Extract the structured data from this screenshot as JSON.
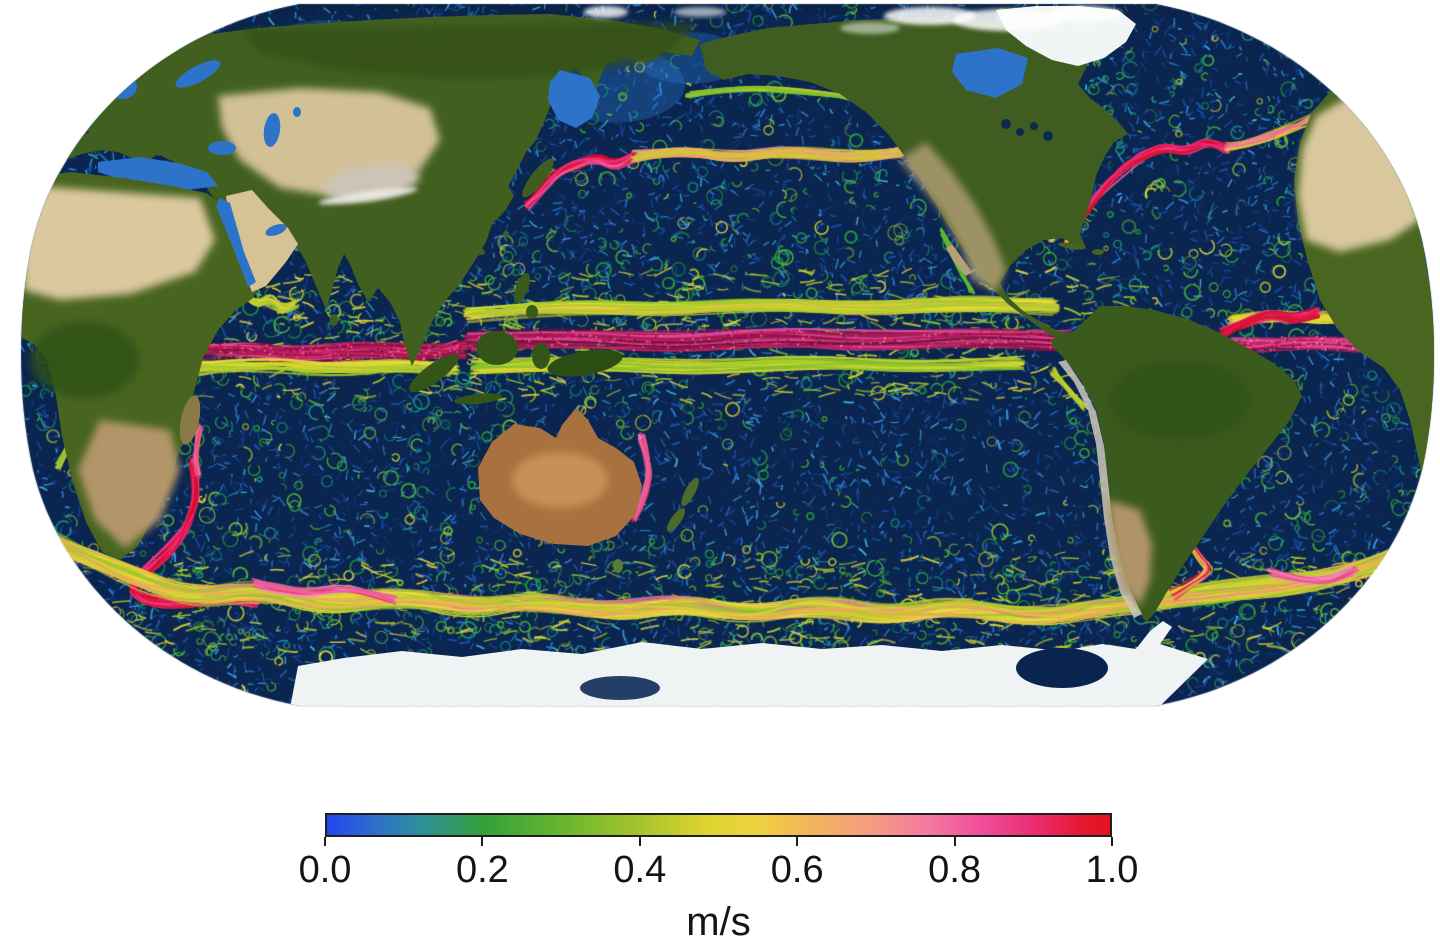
{
  "figure": {
    "kind": "global ocean surface current speed map",
    "projection": "robinson-like, pacific-centered",
    "background": "#ffffff"
  },
  "colorbar": {
    "unit": "m/s",
    "min": "0.0",
    "max": "1.0",
    "ticks": [
      "0.0",
      "0.2",
      "0.4",
      "0.6",
      "0.8",
      "1.0"
    ],
    "gradient": [
      [
        0,
        "#2347ee"
      ],
      [
        6,
        "#2d6ecb"
      ],
      [
        12,
        "#2e8f9a"
      ],
      [
        20,
        "#33a139"
      ],
      [
        30,
        "#69b52f"
      ],
      [
        40,
        "#a6c42d"
      ],
      [
        48,
        "#dcd32f"
      ],
      [
        55,
        "#eed23e"
      ],
      [
        62,
        "#f2b35c"
      ],
      [
        70,
        "#f59b85"
      ],
      [
        77,
        "#f478a0"
      ],
      [
        83,
        "#f0519d"
      ],
      [
        90,
        "#ea2f75"
      ],
      [
        96,
        "#e81936"
      ],
      [
        100,
        "#e5101e"
      ]
    ]
  },
  "map": {
    "ocean_base": "#0a2550",
    "ocean_top_strip": "#0b2347",
    "palette": {
      "speckle_blue": [
        "#1c55b8",
        "#2f7fd8",
        "#3fa0e8",
        "#123a80",
        "#45b8dc"
      ],
      "speckle_green": [
        "#2aa13a",
        "#52bb34",
        "#1a8f78",
        "#83c52e",
        "#c6ce2f",
        "#e8dc3a"
      ],
      "tropic_yellow": [
        "#d6d92e",
        "#b9ce2f",
        "#ecd93c",
        "#9cc92e"
      ],
      "dot_colors": [
        "#e61448",
        "#f24f8e",
        "#700e36",
        "#ff7fa8"
      ]
    },
    "soft_regions": [
      [
        615,
        85,
        70,
        38
      ],
      [
        690,
        58,
        55,
        26
      ],
      [
        330,
        42,
        60,
        22
      ],
      [
        470,
        60,
        50,
        20
      ]
    ],
    "currents": [
      {
        "name": "north-equatorial-counter-current-pacific",
        "pts": [
          [
            468,
            314
          ],
          [
            560,
            306
          ],
          [
            660,
            311
          ],
          [
            760,
            304
          ],
          [
            860,
            309
          ],
          [
            960,
            303
          ],
          [
            1055,
            307
          ]
        ],
        "w": 10,
        "jit": 5,
        "strokes": 48,
        "colors": [
          "#d6d92e",
          "#ece23c",
          "#a9cc2c",
          "#f0b84e"
        ],
        "dots": false
      },
      {
        "name": "south-equatorial-current-pacific",
        "pts": [
          [
            468,
            342
          ],
          [
            570,
            338
          ],
          [
            670,
            343
          ],
          [
            770,
            337
          ],
          [
            870,
            342
          ],
          [
            970,
            338
          ],
          [
            1070,
            341
          ]
        ],
        "w": 13,
        "jit": 5,
        "strokes": 58,
        "colors": [
          "#8c1345",
          "#a81650",
          "#c92465",
          "#701038",
          "#e0489a"
        ],
        "dots": true,
        "dotsN": 300
      },
      {
        "name": "south-equatorial-band-south",
        "pts": [
          [
            475,
            367
          ],
          [
            580,
            362
          ],
          [
            690,
            368
          ],
          [
            800,
            362
          ],
          [
            910,
            367
          ],
          [
            1020,
            363
          ]
        ],
        "w": 8,
        "jit": 5,
        "strokes": 36,
        "colors": [
          "#aecb2e",
          "#d9d52f",
          "#7cc22f"
        ],
        "dots": false
      },
      {
        "name": "indian-equatorial-jets",
        "pts": [
          [
            185,
            353
          ],
          [
            240,
            349
          ],
          [
            300,
            355
          ],
          [
            360,
            350
          ],
          [
            420,
            354
          ],
          [
            462,
            350
          ]
        ],
        "w": 12,
        "jit": 6,
        "strokes": 46,
        "colors": [
          "#8c1345",
          "#c92465",
          "#ee4f9a",
          "#a81650"
        ],
        "dots": true,
        "dotsN": 220
      },
      {
        "name": "indian-equatorial-fringe",
        "pts": [
          [
            190,
            368
          ],
          [
            260,
            364
          ],
          [
            330,
            370
          ],
          [
            400,
            365
          ],
          [
            455,
            369
          ]
        ],
        "w": 7,
        "jit": 5,
        "strokes": 26,
        "colors": [
          "#d6d92e",
          "#ecd93c",
          "#a9cc2c"
        ],
        "dots": false
      },
      {
        "name": "atlantic-equatorial-band",
        "pts": [
          [
            1235,
            345
          ],
          [
            1300,
            341
          ],
          [
            1360,
            345
          ],
          [
            1424,
            342
          ]
        ],
        "w": 10,
        "jit": 5,
        "strokes": 34,
        "colors": [
          "#8c1345",
          "#c92465",
          "#ee4f9a",
          "#e0489a"
        ],
        "dots": true,
        "dotsN": 140
      },
      {
        "name": "atlantic-counter-current-yellow",
        "pts": [
          [
            1230,
            322
          ],
          [
            1270,
            316
          ],
          [
            1310,
            320
          ],
          [
            1350,
            315
          ]
        ],
        "w": 6,
        "jit": 4,
        "strokes": 20,
        "colors": [
          "#d6d92e",
          "#ecd93c",
          "#f0b84e"
        ],
        "dots": false
      },
      {
        "name": "kuroshio",
        "pts": [
          [
            527,
            206
          ],
          [
            539,
            194
          ],
          [
            549,
            181
          ],
          [
            562,
            171
          ],
          [
            578,
            164
          ],
          [
            597,
            159
          ],
          [
            615,
            166
          ],
          [
            634,
            157
          ]
        ],
        "w": 6,
        "jit": 3,
        "strokes": 30,
        "colors": [
          "#e01438",
          "#f0368a",
          "#c90d30",
          "#ee6f9f"
        ],
        "dots": false
      },
      {
        "name": "kuroshio-extension",
        "pts": [
          [
            634,
            157
          ],
          [
            682,
            151
          ],
          [
            732,
            158
          ],
          [
            792,
            151
          ],
          [
            852,
            158
          ],
          [
            902,
            152
          ]
        ],
        "w": 7,
        "jit": 4,
        "strokes": 30,
        "colors": [
          "#e8d43a",
          "#f0a85c",
          "#c9d02f",
          "#ee8f9f"
        ],
        "dots": false
      },
      {
        "name": "subarctic-current",
        "pts": [
          [
            688,
            96
          ],
          [
            740,
            87
          ],
          [
            800,
            91
          ],
          [
            852,
            98
          ]
        ],
        "w": 4,
        "jit": 3,
        "strokes": 16,
        "colors": [
          "#bccd2f",
          "#e0d43a",
          "#7cc22f"
        ],
        "dots": false
      },
      {
        "name": "gulf-stream",
        "pts": [
          [
            1072,
            233
          ],
          [
            1083,
            216
          ],
          [
            1095,
            199
          ],
          [
            1109,
            183
          ],
          [
            1125,
            167
          ],
          [
            1143,
            154
          ],
          [
            1164,
            147
          ],
          [
            1186,
            152
          ],
          [
            1206,
            142
          ],
          [
            1228,
            149
          ]
        ],
        "w": 6,
        "jit": 3,
        "strokes": 32,
        "colors": [
          "#e01438",
          "#ee2f80",
          "#d80c28",
          "#f05f9f"
        ],
        "dots": false
      },
      {
        "name": "north-atlantic-drift",
        "pts": [
          [
            1228,
            149
          ],
          [
            1258,
            141
          ],
          [
            1287,
            131
          ],
          [
            1312,
            121
          ]
        ],
        "w": 6,
        "jit": 4,
        "strokes": 18,
        "colors": [
          "#e8c83a",
          "#f09a60",
          "#ee6f9f"
        ],
        "dots": false
      },
      {
        "name": "loop-current",
        "pts": [
          [
            1050,
            240
          ],
          [
            1060,
            227
          ],
          [
            1072,
            231
          ],
          [
            1066,
            243
          ]
        ],
        "w": 4,
        "jit": 2,
        "strokes": 12,
        "colors": [
          "#ee6f9f",
          "#f0368a",
          "#e8c83a"
        ],
        "dots": false
      },
      {
        "name": "north-brazil-current",
        "pts": [
          [
            1222,
            333
          ],
          [
            1247,
            322
          ],
          [
            1272,
            313
          ],
          [
            1296,
            320
          ],
          [
            1318,
            312
          ]
        ],
        "w": 6,
        "jit": 3,
        "strokes": 26,
        "colors": [
          "#e01438",
          "#ee2f80",
          "#c90d30"
        ],
        "dots": false
      },
      {
        "name": "agulhas-current",
        "pts": [
          [
            193,
            462
          ],
          [
            198,
            492
          ],
          [
            189,
            522
          ],
          [
            173,
            548
          ],
          [
            149,
            570
          ],
          [
            129,
            588
          ],
          [
            143,
            600
          ],
          [
            176,
            603
          ],
          [
            216,
            597
          ],
          [
            256,
            603
          ]
        ],
        "w": 6,
        "jit": 4,
        "strokes": 30,
        "colors": [
          "#e01438",
          "#d80c28",
          "#ee2f80",
          "#f0368a"
        ],
        "dots": false
      },
      {
        "name": "mozambique-eddies",
        "pts": [
          [
            199,
            428
          ],
          [
            194,
            452
          ],
          [
            198,
            476
          ]
        ],
        "w": 5,
        "jit": 3,
        "strokes": 14,
        "colors": [
          "#ee4f9a",
          "#f0368a",
          "#e8c83a"
        ],
        "dots": false
      },
      {
        "name": "antarctic-circumpolar-current",
        "pts": [
          [
            48,
            540
          ],
          [
            120,
            572
          ],
          [
            190,
            598
          ],
          [
            260,
            589
          ],
          [
            330,
            606
          ],
          [
            400,
            595
          ],
          [
            470,
            610
          ],
          [
            540,
            599
          ],
          [
            610,
            614
          ],
          [
            680,
            603
          ],
          [
            750,
            616
          ],
          [
            820,
            605
          ],
          [
            890,
            617
          ],
          [
            960,
            607
          ],
          [
            1030,
            618
          ],
          [
            1100,
            609
          ],
          [
            1165,
            599
          ],
          [
            1230,
            591
          ],
          [
            1300,
            584
          ],
          [
            1360,
            571
          ],
          [
            1412,
            550
          ]
        ],
        "w": 11,
        "jit": 7,
        "strokes": 90,
        "colors": [
          "#d8d433",
          "#ecde3f",
          "#b6cd2f",
          "#f0a85c",
          "#ee6f9f",
          "#8fc42e"
        ],
        "dots": false
      },
      {
        "name": "acc-pink-meander-indian",
        "pts": [
          [
            255,
            584
          ],
          [
            300,
            596
          ],
          [
            345,
            588
          ],
          [
            395,
            600
          ]
        ],
        "w": 5,
        "jit": 4,
        "strokes": 16,
        "colors": [
          "#ee5f9f",
          "#e8386f",
          "#f08fb5"
        ],
        "dots": false
      },
      {
        "name": "acc-pink-meander-atlantic",
        "pts": [
          [
            1270,
            572
          ],
          [
            1315,
            584
          ],
          [
            1355,
            570
          ]
        ],
        "w": 5,
        "jit": 4,
        "strokes": 14,
        "colors": [
          "#ee5f9f",
          "#e8386f",
          "#f08fb5"
        ],
        "dots": false
      },
      {
        "name": "east-australian-current",
        "pts": [
          [
            641,
            437
          ],
          [
            650,
            464
          ],
          [
            646,
            494
          ],
          [
            634,
            519
          ]
        ],
        "w": 5,
        "jit": 3,
        "strokes": 18,
        "colors": [
          "#ee5f9f",
          "#e8386f",
          "#f08fb5"
        ],
        "dots": false
      },
      {
        "name": "brazil-malvinas-confluence",
        "pts": [
          [
            1186,
            538
          ],
          [
            1198,
            555
          ],
          [
            1212,
            569
          ],
          [
            1192,
            584
          ],
          [
            1172,
            596
          ]
        ],
        "w": 5,
        "jit": 3,
        "strokes": 20,
        "colors": [
          "#e01438",
          "#ee5f9f",
          "#e8c83a"
        ],
        "dots": false
      },
      {
        "name": "somali-current",
        "pts": [
          [
            242,
            292
          ],
          [
            255,
            306
          ],
          [
            269,
            297
          ],
          [
            283,
            311
          ],
          [
            297,
            303
          ]
        ],
        "w": 5,
        "jit": 3,
        "strokes": 18,
        "colors": [
          "#bccd2f",
          "#e0d43a",
          "#52bb34"
        ],
        "dots": false
      },
      {
        "name": "benguela-current",
        "pts": [
          [
            58,
            468
          ],
          [
            74,
            438
          ],
          [
            88,
            408
          ],
          [
            96,
            380
          ]
        ],
        "w": 4,
        "jit": 3,
        "strokes": 14,
        "colors": [
          "#8fc42e",
          "#d0d22f"
        ],
        "dots": false
      },
      {
        "name": "peru-current",
        "pts": [
          [
            1085,
            408
          ],
          [
            1068,
            390
          ],
          [
            1052,
            372
          ]
        ],
        "w": 4,
        "jit": 3,
        "strokes": 12,
        "colors": [
          "#c6ce2f",
          "#9cc92e"
        ],
        "dots": false
      },
      {
        "name": "california-current",
        "pts": [
          [
            940,
            230
          ],
          [
            952,
            252
          ],
          [
            962,
            274
          ],
          [
            972,
            292
          ]
        ],
        "w": 4,
        "jit": 3,
        "strokes": 10,
        "colors": [
          "#9cc92e",
          "#52bb34"
        ],
        "dots": false
      }
    ]
  }
}
